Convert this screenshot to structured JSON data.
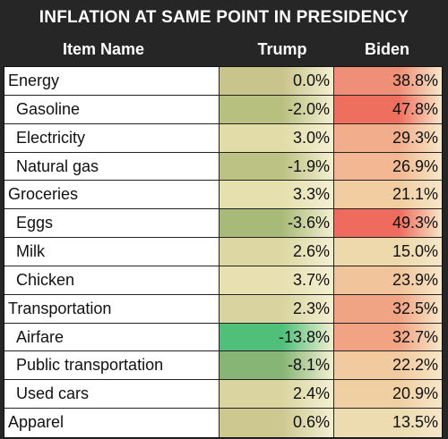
{
  "title": "INFLATION AT SAME POINT IN PRESIDENCY",
  "columns": {
    "name": "Item Name",
    "trump": "Trump",
    "biden": "Biden"
  },
  "colors": {
    "neutral": "#e9e2b8",
    "green": "#4fbf7a",
    "red": "#ee6b5e"
  },
  "rows": [
    {
      "name": "Energy",
      "sub": false,
      "trump": "0.0%",
      "biden": "38.8%",
      "trump_bg": "#c9c48c",
      "biden_bg": "#f08f78"
    },
    {
      "name": "Gasoline",
      "sub": true,
      "trump": "-2.0%",
      "biden": "47.8%",
      "trump_bg": "#b8c080",
      "biden_bg": "#ef6f5f"
    },
    {
      "name": "Electricity",
      "sub": true,
      "trump": "3.0%",
      "biden": "29.3%",
      "trump_bg": "#e2dca8",
      "biden_bg": "#f2ae8c"
    },
    {
      "name": "Natural gas",
      "sub": true,
      "trump": "-1.9%",
      "biden": "26.9%",
      "trump_bg": "#bcc283",
      "biden_bg": "#f3b893"
    },
    {
      "name": "Groceries",
      "sub": false,
      "trump": "3.3%",
      "biden": "21.1%",
      "trump_bg": "#e6dfae",
      "biden_bg": "#f1cda1"
    },
    {
      "name": "Eggs",
      "sub": true,
      "trump": "-3.6%",
      "biden": "49.3%",
      "trump_bg": "#a8ba78",
      "biden_bg": "#ee6b5d"
    },
    {
      "name": "Milk",
      "sub": true,
      "trump": "2.6%",
      "biden": "15.0%",
      "trump_bg": "#ddd8a3",
      "biden_bg": "#eed9ac"
    },
    {
      "name": "Chicken",
      "sub": true,
      "trump": "3.7%",
      "biden": "23.9%",
      "trump_bg": "#e8e0b0",
      "biden_bg": "#f2c49b"
    },
    {
      "name": "Transportation",
      "sub": false,
      "trump": "2.3%",
      "biden": "32.5%",
      "trump_bg": "#d9d49f",
      "biden_bg": "#f1a484"
    },
    {
      "name": "Airfare",
      "sub": true,
      "trump": "-13.8%",
      "biden": "32.7%",
      "trump_bg": "#4fbf7a",
      "biden_bg": "#f1a383"
    },
    {
      "name": "Public transportation",
      "sub": true,
      "trump": "-8.1%",
      "biden": "22.2%",
      "trump_bg": "#86b576",
      "biden_bg": "#f2ca9f"
    },
    {
      "name": "Used cars",
      "sub": true,
      "trump": "2.4%",
      "biden": "20.9%",
      "trump_bg": "#dad5a0",
      "biden_bg": "#f0cfa3"
    },
    {
      "name": "Apparel",
      "sub": false,
      "trump": "0.6%",
      "biden": "13.5%",
      "trump_bg": "#cdc890",
      "biden_bg": "#ecdcb0"
    }
  ]
}
